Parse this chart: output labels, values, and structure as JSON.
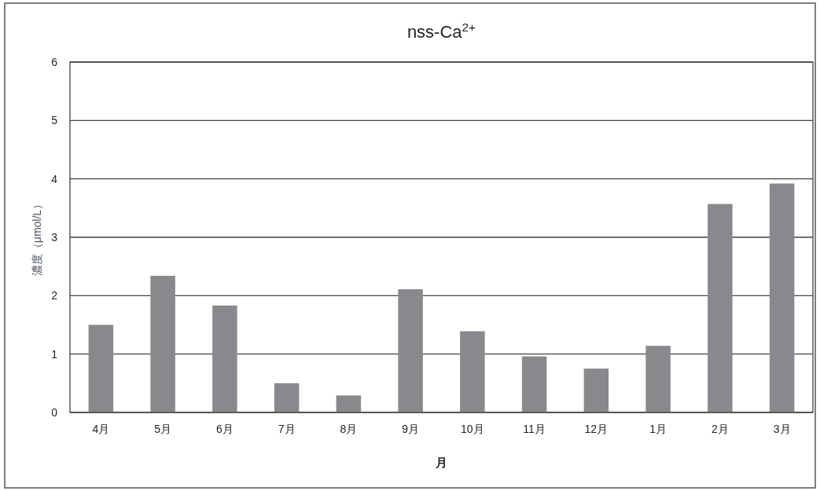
{
  "chart_data": {
    "type": "bar",
    "title": "nss-Ca$^{2+}$",
    "xlabel": "月",
    "ylabel": "濃度（μmol/L）",
    "categories": [
      "4月",
      "5月",
      "6月",
      "7月",
      "8月",
      "9月",
      "10月",
      "11月",
      "12月",
      "1月",
      "2月",
      "3月"
    ],
    "values": [
      1.5,
      2.34,
      1.83,
      0.5,
      0.29,
      2.11,
      1.39,
      0.96,
      0.75,
      1.14,
      3.57,
      3.92
    ],
    "color": "#88898d",
    "ylim": [
      0,
      6
    ],
    "yticks": [
      0,
      1,
      2,
      3,
      4,
      5,
      6
    ],
    "grid": "y"
  }
}
